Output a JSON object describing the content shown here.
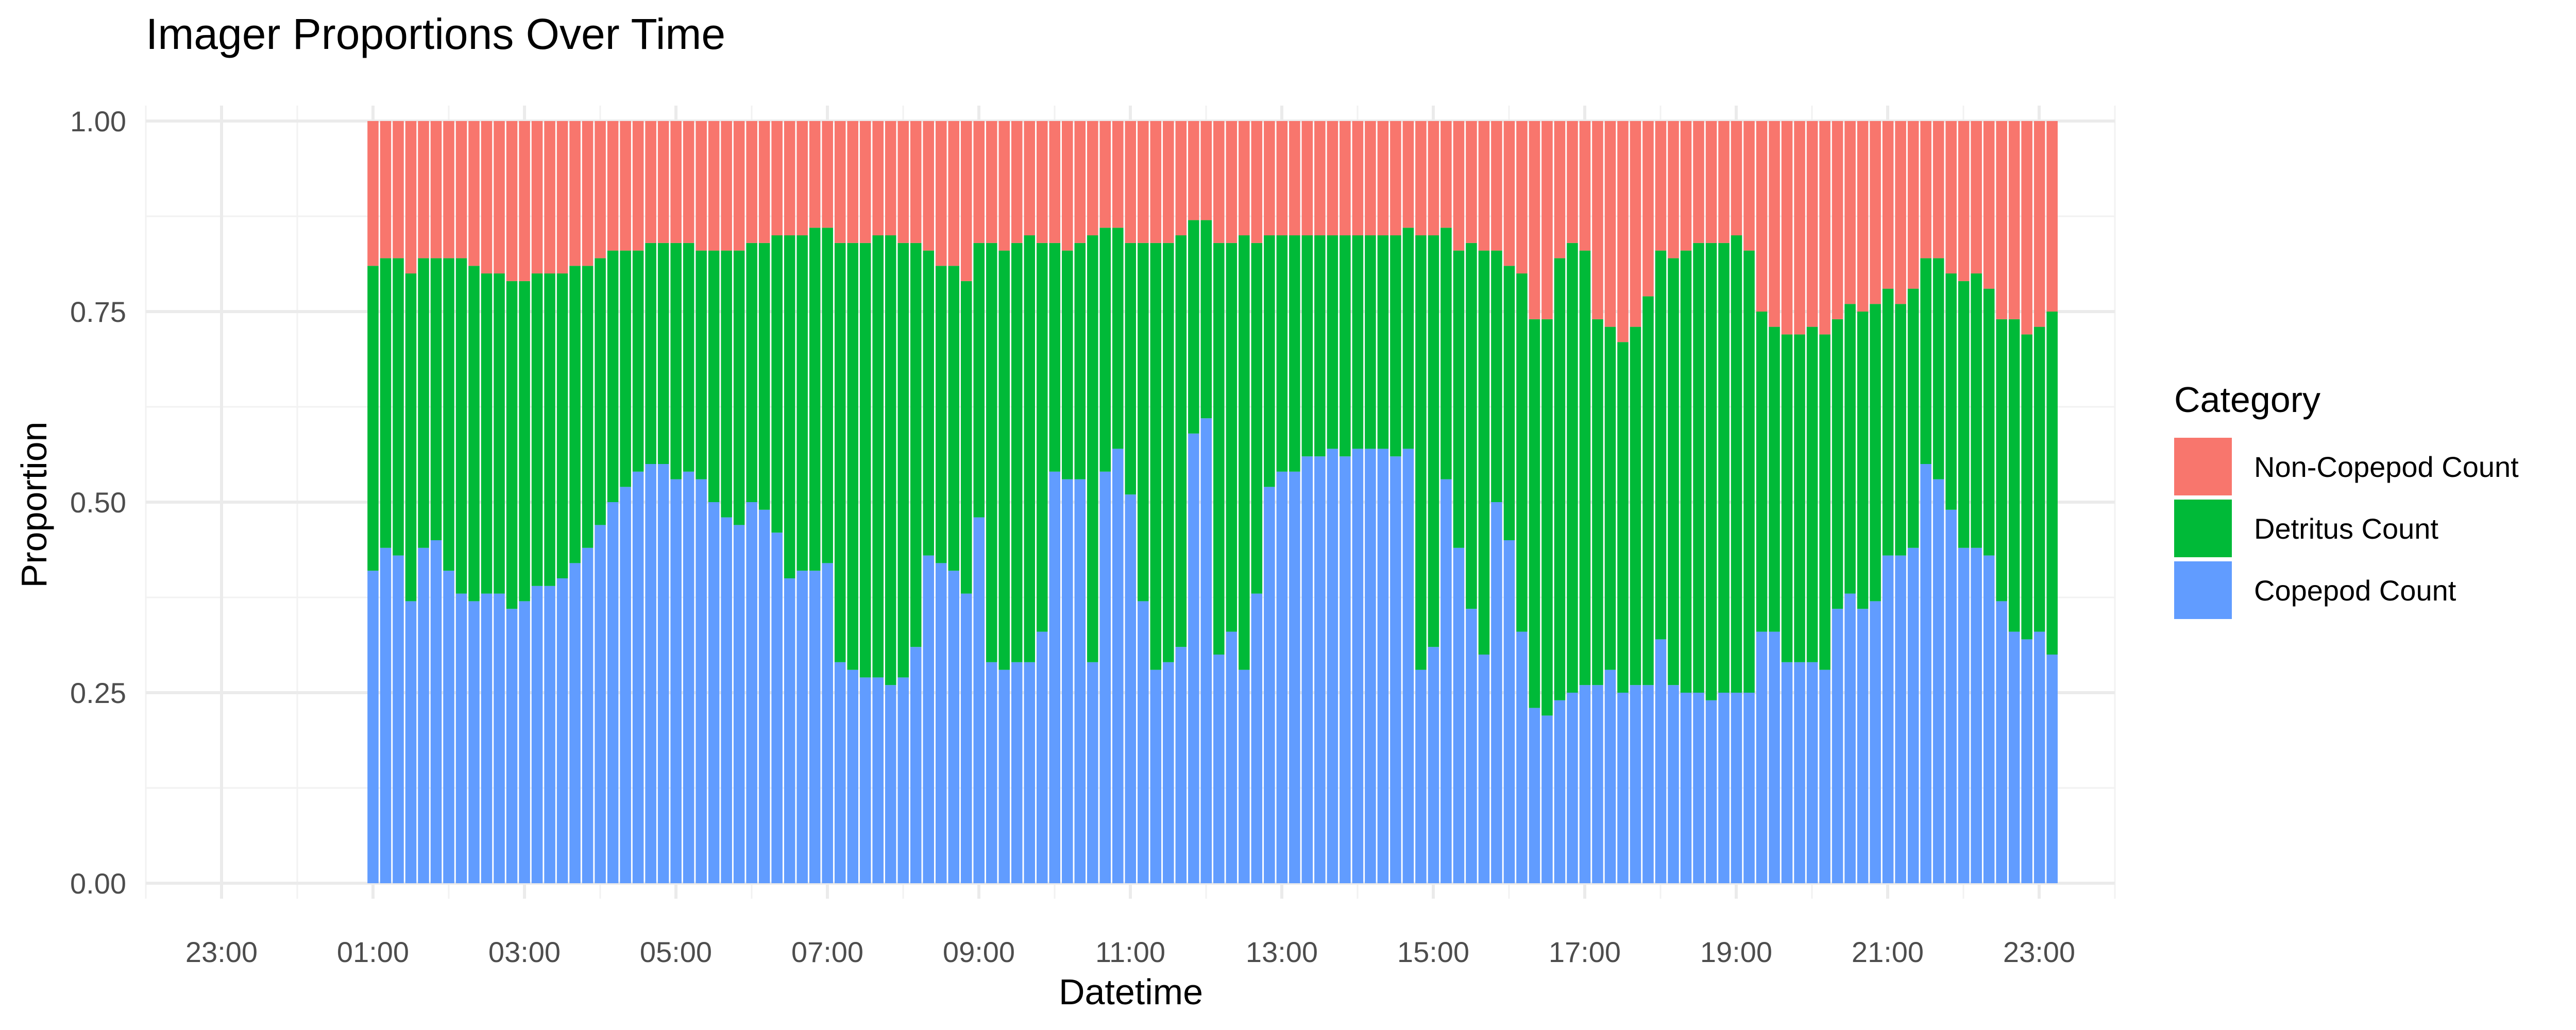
{
  "chart_data": {
    "type": "bar",
    "stacked": true,
    "title": "Imager Proportions Over Time",
    "xlabel": "Datetime",
    "ylabel": "Proportion",
    "ylim": [
      0,
      1
    ],
    "y_ticks": [
      "0.00",
      "0.25",
      "0.50",
      "0.75",
      "1.00"
    ],
    "x_ticks": [
      "23:00",
      "01:00",
      "03:00",
      "05:00",
      "07:00",
      "09:00",
      "11:00",
      "13:00",
      "15:00",
      "17:00",
      "19:00",
      "21:00",
      "23:00"
    ],
    "x_tick_hours": [
      -1,
      1,
      3,
      5,
      7,
      9,
      11,
      13,
      15,
      17,
      19,
      21,
      23
    ],
    "xlim_hours": [
      -2.0,
      24.0
    ],
    "x_start_hour": 1.0,
    "x_step_hours": 0.1667,
    "grid": true,
    "legend_position": "right",
    "legend": {
      "title": "Category",
      "items": [
        "Non-Copepod Count",
        "Detritus Count",
        "Copepod Count"
      ]
    },
    "series": [
      {
        "name": "Copepod Count",
        "color": "#619CFF",
        "values": [
          0.41,
          0.44,
          0.43,
          0.37,
          0.44,
          0.45,
          0.41,
          0.38,
          0.37,
          0.38,
          0.38,
          0.36,
          0.37,
          0.39,
          0.39,
          0.4,
          0.42,
          0.44,
          0.47,
          0.5,
          0.52,
          0.54,
          0.55,
          0.55,
          0.53,
          0.54,
          0.53,
          0.5,
          0.48,
          0.47,
          0.5,
          0.49,
          0.46,
          0.4,
          0.41,
          0.41,
          0.42,
          0.29,
          0.28,
          0.27,
          0.27,
          0.26,
          0.27,
          0.31,
          0.43,
          0.42,
          0.41,
          0.38,
          0.48,
          0.29,
          0.28,
          0.29,
          0.29,
          0.33,
          0.54,
          0.53,
          0.53,
          0.29,
          0.54,
          0.57,
          0.51,
          0.37,
          0.28,
          0.29,
          0.31,
          0.59,
          0.61,
          0.3,
          0.33,
          0.28,
          0.38,
          0.52,
          0.54,
          0.54,
          0.56,
          0.56,
          0.57,
          0.56,
          0.57,
          0.57,
          0.57,
          0.56,
          0.57,
          0.28,
          0.31,
          0.53,
          0.44,
          0.36,
          0.3,
          0.5,
          0.45,
          0.33,
          0.23,
          0.22,
          0.24,
          0.25,
          0.26,
          0.26,
          0.28,
          0.25,
          0.26,
          0.26,
          0.32,
          0.26,
          0.25,
          0.25,
          0.24,
          0.25,
          0.25,
          0.25,
          0.33,
          0.33,
          0.29,
          0.29,
          0.29,
          0.28,
          0.36,
          0.38,
          0.36,
          0.37,
          0.43,
          0.43,
          0.44,
          0.55,
          0.53,
          0.49,
          0.44,
          0.44,
          0.43,
          0.37,
          0.33,
          0.32,
          0.33,
          0.3
        ]
      },
      {
        "name": "Detritus Count",
        "color": "#00BA38",
        "values": [
          0.4,
          0.38,
          0.39,
          0.43,
          0.38,
          0.37,
          0.41,
          0.44,
          0.44,
          0.42,
          0.42,
          0.43,
          0.42,
          0.41,
          0.41,
          0.4,
          0.39,
          0.37,
          0.35,
          0.33,
          0.31,
          0.29,
          0.29,
          0.29,
          0.31,
          0.3,
          0.3,
          0.33,
          0.35,
          0.36,
          0.34,
          0.35,
          0.39,
          0.45,
          0.44,
          0.45,
          0.44,
          0.55,
          0.56,
          0.57,
          0.58,
          0.59,
          0.57,
          0.53,
          0.4,
          0.39,
          0.4,
          0.41,
          0.36,
          0.55,
          0.55,
          0.55,
          0.56,
          0.51,
          0.3,
          0.3,
          0.31,
          0.56,
          0.32,
          0.29,
          0.33,
          0.47,
          0.56,
          0.55,
          0.54,
          0.28,
          0.26,
          0.54,
          0.51,
          0.57,
          0.46,
          0.33,
          0.31,
          0.31,
          0.29,
          0.29,
          0.28,
          0.29,
          0.28,
          0.28,
          0.28,
          0.29,
          0.29,
          0.57,
          0.54,
          0.33,
          0.39,
          0.48,
          0.53,
          0.33,
          0.36,
          0.47,
          0.51,
          0.52,
          0.58,
          0.59,
          0.57,
          0.48,
          0.45,
          0.46,
          0.47,
          0.51,
          0.51,
          0.56,
          0.58,
          0.59,
          0.6,
          0.59,
          0.6,
          0.58,
          0.42,
          0.4,
          0.43,
          0.43,
          0.44,
          0.44,
          0.38,
          0.38,
          0.39,
          0.39,
          0.35,
          0.33,
          0.34,
          0.27,
          0.29,
          0.31,
          0.35,
          0.36,
          0.35,
          0.37,
          0.41,
          0.4,
          0.4,
          0.45
        ]
      },
      {
        "name": "Non-Copepod Count",
        "color": "#F8766D",
        "values": [
          0.19,
          0.18,
          0.18,
          0.2,
          0.18,
          0.18,
          0.18,
          0.18,
          0.19,
          0.2,
          0.2,
          0.21,
          0.21,
          0.2,
          0.2,
          0.2,
          0.19,
          0.19,
          0.18,
          0.17,
          0.17,
          0.17,
          0.16,
          0.16,
          0.16,
          0.16,
          0.17,
          0.17,
          0.17,
          0.17,
          0.16,
          0.16,
          0.15,
          0.15,
          0.15,
          0.14,
          0.14,
          0.16,
          0.16,
          0.16,
          0.15,
          0.15,
          0.16,
          0.16,
          0.17,
          0.19,
          0.19,
          0.21,
          0.16,
          0.16,
          0.17,
          0.16,
          0.15,
          0.16,
          0.16,
          0.17,
          0.16,
          0.15,
          0.14,
          0.14,
          0.16,
          0.16,
          0.16,
          0.16,
          0.15,
          0.13,
          0.13,
          0.16,
          0.16,
          0.15,
          0.16,
          0.15,
          0.15,
          0.15,
          0.15,
          0.15,
          0.15,
          0.15,
          0.15,
          0.15,
          0.15,
          0.15,
          0.14,
          0.15,
          0.15,
          0.14,
          0.17,
          0.16,
          0.17,
          0.17,
          0.19,
          0.2,
          0.26,
          0.26,
          0.18,
          0.16,
          0.17,
          0.26,
          0.27,
          0.29,
          0.27,
          0.23,
          0.17,
          0.18,
          0.17,
          0.16,
          0.16,
          0.16,
          0.15,
          0.17,
          0.25,
          0.27,
          0.28,
          0.28,
          0.27,
          0.28,
          0.26,
          0.24,
          0.25,
          0.24,
          0.22,
          0.24,
          0.22,
          0.18,
          0.18,
          0.2,
          0.21,
          0.2,
          0.22,
          0.26,
          0.26,
          0.28,
          0.27,
          0.25
        ]
      }
    ]
  }
}
